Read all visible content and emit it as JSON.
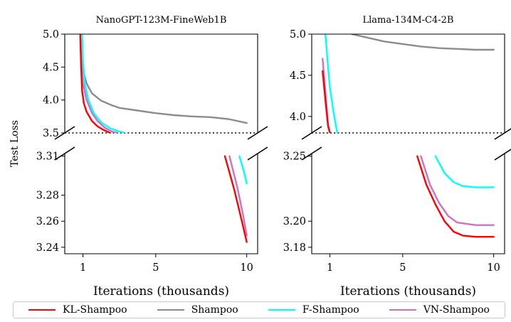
{
  "chart_data": [
    {
      "type": "line",
      "title": "NanoGPT-123M-FineWeb1B",
      "xlabel": "Iterations (thousands)",
      "ylabel": "Test Loss",
      "axis_break": true,
      "xlim": [
        0,
        10.6
      ],
      "xticks": [
        1,
        5,
        10
      ],
      "xtick_labels": [
        "1",
        "5",
        "10"
      ],
      "top_ylim": [
        3.5,
        5.0
      ],
      "top_yticks": [
        3.5,
        4.0,
        4.5,
        5.0
      ],
      "top_ytick_labels": [
        "3.5",
        "4.0",
        "4.5",
        "5.0"
      ],
      "bottom_ylim": [
        3.235,
        3.312
      ],
      "bottom_yticks": [
        3.24,
        3.26,
        3.28,
        3.31
      ],
      "bottom_ytick_labels": [
        "3.24",
        "3.26",
        "3.28",
        "3.31"
      ],
      "reference_line": 3.5,
      "series": [
        {
          "name": "KL-Shampoo",
          "color": "#ff0000",
          "top": [
            [
              0.85,
              5.0
            ],
            [
              0.9,
              4.5
            ],
            [
              0.95,
              4.15
            ],
            [
              1.05,
              3.95
            ],
            [
              1.2,
              3.82
            ],
            [
              1.5,
              3.68
            ],
            [
              1.8,
              3.6
            ],
            [
              2.1,
              3.55
            ],
            [
              2.5,
              3.5
            ]
          ],
          "bottom": [
            [
              8.8,
              3.31
            ],
            [
              9.3,
              3.285
            ],
            [
              9.7,
              3.262
            ],
            [
              10.0,
              3.244
            ]
          ]
        },
        {
          "name": "Shampoo",
          "color": "#8c8c8c",
          "top": [
            [
              0.85,
              5.0
            ],
            [
              0.9,
              4.7
            ],
            [
              1.0,
              4.45
            ],
            [
              1.2,
              4.25
            ],
            [
              1.5,
              4.1
            ],
            [
              2.0,
              3.99
            ],
            [
              2.5,
              3.93
            ],
            [
              3.0,
              3.88
            ],
            [
              4.0,
              3.84
            ],
            [
              5.0,
              3.8
            ],
            [
              6.0,
              3.77
            ],
            [
              7.0,
              3.75
            ],
            [
              8.0,
              3.74
            ],
            [
              9.0,
              3.71
            ],
            [
              10.0,
              3.65
            ]
          ],
          "bottom": []
        },
        {
          "name": "F-Shampoo",
          "color": "#00ffff",
          "top": [
            [
              0.95,
              5.0
            ],
            [
              1.0,
              4.6
            ],
            [
              1.1,
              4.25
            ],
            [
              1.3,
              4.0
            ],
            [
              1.6,
              3.8
            ],
            [
              2.0,
              3.66
            ],
            [
              2.5,
              3.57
            ],
            [
              3.0,
              3.52
            ],
            [
              3.3,
              3.5
            ]
          ],
          "bottom": [
            [
              9.6,
              3.31
            ],
            [
              9.85,
              3.298
            ],
            [
              10.0,
              3.289
            ]
          ]
        },
        {
          "name": "VN-Shampoo",
          "color": "#d070c0",
          "top": [
            [
              0.85,
              5.0
            ],
            [
              0.9,
              4.6
            ],
            [
              1.0,
              4.25
            ],
            [
              1.2,
              4.0
            ],
            [
              1.5,
              3.8
            ],
            [
              1.8,
              3.68
            ],
            [
              2.2,
              3.58
            ],
            [
              2.6,
              3.52
            ],
            [
              2.9,
              3.5
            ]
          ],
          "bottom": [
            [
              9.05,
              3.31
            ],
            [
              9.5,
              3.285
            ],
            [
              9.8,
              3.265
            ],
            [
              10.0,
              3.249
            ]
          ]
        }
      ]
    },
    {
      "type": "line",
      "title": "Llama-134M-C4-2B",
      "xlabel": "Iterations (thousands)",
      "ylabel": "Test Loss",
      "axis_break": true,
      "xlim": [
        0,
        10.6
      ],
      "xticks": [
        1,
        5,
        10
      ],
      "xtick_labels": [
        "1",
        "5",
        "10"
      ],
      "top_ylim": [
        3.8,
        5.0
      ],
      "top_yticks": [
        4.0,
        4.5,
        5.0
      ],
      "top_ytick_labels": [
        "4.0",
        "4.5",
        "5.0"
      ],
      "bottom_ylim": [
        3.175,
        3.252
      ],
      "bottom_yticks": [
        3.18,
        3.2,
        3.25
      ],
      "bottom_ytick_labels": [
        "3.18",
        "3.20",
        "3.25"
      ],
      "reference_line": 3.8,
      "series": [
        {
          "name": "KL-Shampoo",
          "color": "#ff0000",
          "top": [
            [
              0.6,
              4.55
            ],
            [
              0.75,
              4.2
            ],
            [
              0.9,
              3.88
            ],
            [
              1.0,
              3.8
            ]
          ],
          "bottom": [
            [
              5.8,
              3.25
            ],
            [
              6.3,
              3.228
            ],
            [
              6.8,
              3.213
            ],
            [
              7.3,
              3.2
            ],
            [
              7.8,
              3.192
            ],
            [
              8.3,
              3.189
            ],
            [
              9.0,
              3.188
            ],
            [
              10.0,
              3.188
            ]
          ]
        },
        {
          "name": "Shampoo",
          "color": "#8c8c8c",
          "top": [
            [
              2.2,
              5.0
            ],
            [
              3.0,
              4.96
            ],
            [
              4.0,
              4.91
            ],
            [
              5.0,
              4.88
            ],
            [
              6.0,
              4.85
            ],
            [
              7.0,
              4.83
            ],
            [
              8.0,
              4.82
            ],
            [
              9.0,
              4.81
            ],
            [
              10.0,
              4.81
            ]
          ],
          "bottom": []
        },
        {
          "name": "F-Shampoo",
          "color": "#00ffff",
          "top": [
            [
              0.75,
              5.0
            ],
            [
              0.9,
              4.6
            ],
            [
              1.0,
              4.35
            ],
            [
              1.2,
              4.05
            ],
            [
              1.4,
              3.8
            ]
          ],
          "bottom": [
            [
              6.8,
              3.25
            ],
            [
              7.3,
              3.237
            ],
            [
              7.8,
              3.23
            ],
            [
              8.3,
              3.227
            ],
            [
              9.0,
              3.226
            ],
            [
              10.0,
              3.226
            ]
          ]
        },
        {
          "name": "VN-Shampoo",
          "color": "#d070c0",
          "top": [
            [
              0.6,
              4.7
            ],
            [
              0.75,
              4.3
            ],
            [
              0.9,
              3.9
            ],
            [
              1.0,
              3.8
            ]
          ],
          "bottom": [
            [
              6.0,
              3.25
            ],
            [
              6.5,
              3.228
            ],
            [
              7.0,
              3.214
            ],
            [
              7.5,
              3.204
            ],
            [
              8.0,
              3.199
            ],
            [
              9.0,
              3.197
            ],
            [
              10.0,
              3.197
            ]
          ]
        }
      ]
    }
  ],
  "legend": [
    {
      "label": "KL-Shampoo",
      "color": "#ff0000"
    },
    {
      "label": "Shampoo",
      "color": "#8c8c8c"
    },
    {
      "label": "F-Shampoo",
      "color": "#00ffff"
    },
    {
      "label": "VN-Shampoo",
      "color": "#d070c0"
    }
  ]
}
